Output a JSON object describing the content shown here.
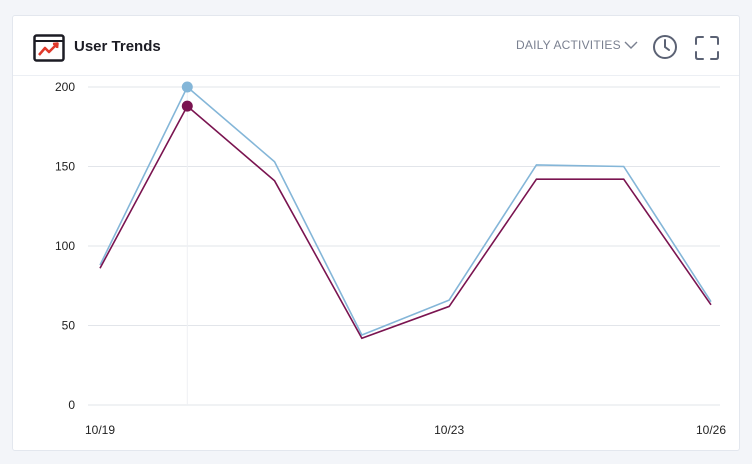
{
  "header": {
    "title": "User Trends",
    "title_icon": "trend-chart-icon",
    "dropdown_label": "DAILY ACTIVITIES",
    "dropdown_icon": "chevron-down-icon",
    "clock_icon": "clock-icon",
    "expand_icon": "fullscreen-icon"
  },
  "colors": {
    "series_a": "#84b6d8",
    "series_b": "#7a1450",
    "accent": "#e0392b",
    "gridline": "#e2e5ea"
  },
  "chart_data": {
    "type": "line",
    "x": [
      "10/19",
      "10/20",
      "10/21",
      "10/22",
      "10/23",
      "10/24",
      "10/25",
      "10/26"
    ],
    "x_tick_labels": [
      "10/19",
      "10/23",
      "10/26"
    ],
    "y_ticks": [
      0,
      50,
      100,
      150,
      200
    ],
    "ylim": [
      0,
      200
    ],
    "grid": true,
    "series": [
      {
        "values": [
          88,
          200,
          153,
          44,
          66,
          151,
          150,
          65
        ],
        "color": "#84b6d8"
      },
      {
        "values": [
          86,
          188,
          141,
          42,
          62,
          142,
          142,
          63
        ],
        "color": "#7a1450"
      }
    ],
    "hover_index": 1
  }
}
